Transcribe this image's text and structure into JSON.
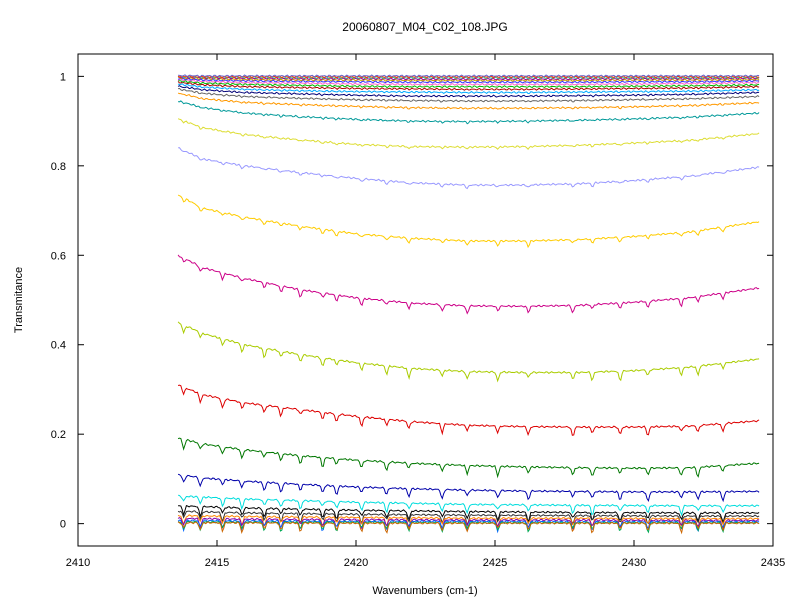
{
  "chart_data": {
    "type": "line",
    "title": "20060807_M04_C02_108.JPG",
    "xlabel": "Wavenumbers (cm-1)",
    "ylabel": "Transmitance",
    "xlim": [
      2410,
      2435
    ],
    "ylim": [
      -0.05,
      1.05
    ],
    "x_ticks": [
      2410,
      2415,
      2420,
      2425,
      2430,
      2435
    ],
    "y_ticks": [
      0,
      0.2,
      0.4,
      0.6,
      0.8,
      1
    ],
    "y_tick_labels": [
      "0",
      "0.2",
      "0.4",
      "0.6",
      "0.8",
      "1"
    ],
    "x_tick_labels": [
      "2410",
      "2415",
      "2420",
      "2425",
      "2430",
      "2435"
    ],
    "grid": false,
    "legend": "none",
    "absorption_lines": [
      2413.8,
      2414.4,
      2415.2,
      2415.9,
      2416.7,
      2417.3,
      2418.0,
      2418.8,
      2419.3,
      2420.2,
      2421.1,
      2421.9,
      2423.1,
      2424.0,
      2425.1,
      2426.2,
      2427.8,
      2428.5,
      2429.5,
      2430.5,
      2431.7,
      2432.3,
      2433.2
    ],
    "series": [
      {
        "color": "#9999ff",
        "x": [
          2413.6,
          2414.5,
          2416,
          2418,
          2420,
          2422,
          2424,
          2426,
          2428,
          2430,
          2432,
          2434.5
        ],
        "y": [
          0.84,
          0.815,
          0.8,
          0.785,
          0.772,
          0.762,
          0.757,
          0.757,
          0.76,
          0.767,
          0.777,
          0.797
        ]
      },
      {
        "color": "#ffcc00",
        "x": [
          2413.6,
          2414.5,
          2416,
          2418,
          2420,
          2422,
          2424,
          2426,
          2428,
          2430,
          2432,
          2434.5
        ],
        "y": [
          0.735,
          0.705,
          0.685,
          0.665,
          0.648,
          0.638,
          0.632,
          0.632,
          0.635,
          0.642,
          0.652,
          0.675
        ]
      },
      {
        "color": "#cc0088",
        "x": [
          2413.6,
          2414.5,
          2416,
          2418,
          2420,
          2422,
          2424,
          2426,
          2428,
          2430,
          2432,
          2434.5
        ],
        "y": [
          0.6,
          0.572,
          0.548,
          0.523,
          0.505,
          0.493,
          0.487,
          0.486,
          0.488,
          0.495,
          0.505,
          0.527
        ]
      },
      {
        "color": "#aacc00",
        "x": [
          2413.6,
          2414.5,
          2416,
          2418,
          2420,
          2422,
          2424,
          2426,
          2428,
          2430,
          2432,
          2434.5
        ],
        "y": [
          0.45,
          0.425,
          0.4,
          0.378,
          0.36,
          0.347,
          0.34,
          0.338,
          0.338,
          0.342,
          0.35,
          0.368
        ]
      },
      {
        "color": "#dd0000",
        "x": [
          2413.6,
          2414.5,
          2416,
          2418,
          2420,
          2422,
          2424,
          2426,
          2428,
          2430,
          2432,
          2434.5
        ],
        "y": [
          0.31,
          0.288,
          0.27,
          0.255,
          0.24,
          0.228,
          0.22,
          0.217,
          0.216,
          0.216,
          0.218,
          0.23
        ]
      },
      {
        "color": "#007700",
        "x": [
          2413.6,
          2414.5,
          2416,
          2418,
          2420,
          2422,
          2424,
          2426,
          2428,
          2430,
          2432,
          2434.5
        ],
        "y": [
          0.192,
          0.178,
          0.165,
          0.152,
          0.142,
          0.135,
          0.13,
          0.127,
          0.125,
          0.124,
          0.125,
          0.135
        ]
      },
      {
        "color": "#0000aa",
        "x": [
          2413.6,
          2414.5,
          2416,
          2418,
          2420,
          2422,
          2424,
          2426,
          2428,
          2430,
          2432,
          2434.5
        ],
        "y": [
          0.11,
          0.102,
          0.095,
          0.088,
          0.082,
          0.078,
          0.075,
          0.073,
          0.072,
          0.071,
          0.071,
          0.072
        ]
      },
      {
        "color": "#00dddd",
        "x": [
          2413.6,
          2416,
          2420,
          2424,
          2428,
          2432,
          2434.5
        ],
        "y": [
          0.062,
          0.055,
          0.048,
          0.043,
          0.041,
          0.04,
          0.04
        ]
      },
      {
        "color": "#000000",
        "x": [
          2413.6,
          2416,
          2420,
          2424,
          2428,
          2432,
          2434.5
        ],
        "y": [
          0.04,
          0.035,
          0.03,
          0.027,
          0.025,
          0.024,
          0.024
        ]
      },
      {
        "color": "#333333",
        "x": [
          2413.6,
          2416,
          2420,
          2424,
          2428,
          2432,
          2434.5
        ],
        "y": [
          0.028,
          0.024,
          0.021,
          0.019,
          0.018,
          0.017,
          0.017
        ]
      },
      {
        "color": "#ff8800",
        "x": [
          2413.6,
          2416,
          2420,
          2424,
          2428,
          2432,
          2434.5
        ],
        "y": [
          0.018,
          0.016,
          0.014,
          0.012,
          0.012,
          0.011,
          0.011
        ]
      },
      {
        "color": "#8800aa",
        "x": [
          2413.6,
          2416,
          2420,
          2424,
          2428,
          2432,
          2434.5
        ],
        "y": [
          0.012,
          0.01,
          0.009,
          0.008,
          0.008,
          0.007,
          0.007
        ]
      },
      {
        "color": "#0066ff",
        "x": [
          2413.6,
          2416,
          2420,
          2424,
          2428,
          2432,
          2434.5
        ],
        "y": [
          0.007,
          0.006,
          0.005,
          0.005,
          0.004,
          0.004,
          0.004
        ]
      },
      {
        "color": "#00aa55",
        "x": [
          2413.6,
          2416,
          2420,
          2424,
          2428,
          2432,
          2434.5
        ],
        "y": [
          0.004,
          0.003,
          0.003,
          0.002,
          0.002,
          0.002,
          0.002
        ]
      },
      {
        "color": "#cc6600",
        "x": [
          2413.6,
          2416,
          2420,
          2424,
          2428,
          2432,
          2434.5
        ],
        "y": [
          0.002,
          0.002,
          0.001,
          0.001,
          0.001,
          0.001,
          0.001
        ]
      },
      {
        "color": "#dddd33",
        "x": [
          2413.6,
          2414.5,
          2416,
          2418,
          2420,
          2422,
          2424,
          2426,
          2428,
          2430,
          2432,
          2434.5
        ],
        "y": [
          0.905,
          0.885,
          0.87,
          0.858,
          0.848,
          0.843,
          0.842,
          0.843,
          0.846,
          0.851,
          0.857,
          0.872
        ]
      },
      {
        "color": "#009999",
        "x": [
          2413.6,
          2414.5,
          2416,
          2418,
          2420,
          2422,
          2424,
          2426,
          2428,
          2430,
          2432,
          2434.5
        ],
        "y": [
          0.945,
          0.93,
          0.918,
          0.91,
          0.904,
          0.9,
          0.899,
          0.9,
          0.902,
          0.905,
          0.909,
          0.918
        ]
      },
      {
        "color": "#ff9900",
        "x": [
          2413.6,
          2414.5,
          2416,
          2418,
          2420,
          2422,
          2424,
          2426,
          2428,
          2430,
          2432,
          2434.5
        ],
        "y": [
          0.963,
          0.95,
          0.942,
          0.937,
          0.933,
          0.93,
          0.929,
          0.929,
          0.93,
          0.932,
          0.935,
          0.941
        ]
      },
      {
        "color": "#666666",
        "x": [
          2413.6,
          2414.5,
          2416,
          2418,
          2420,
          2422,
          2424,
          2426,
          2428,
          2430,
          2432,
          2434.5
        ],
        "y": [
          0.972,
          0.962,
          0.955,
          0.951,
          0.948,
          0.946,
          0.945,
          0.945,
          0.946,
          0.948,
          0.95,
          0.955
        ]
      },
      {
        "color": "#000077",
        "x": [
          2413.6,
          2414.5,
          2416,
          2418,
          2420,
          2422,
          2424,
          2426,
          2428,
          2430,
          2432,
          2434.5
        ],
        "y": [
          0.978,
          0.97,
          0.964,
          0.961,
          0.958,
          0.956,
          0.956,
          0.956,
          0.957,
          0.958,
          0.96,
          0.964
        ]
      },
      {
        "color": "#00aaff",
        "x": [
          2413.6,
          2414.5,
          2416,
          2418,
          2420,
          2422,
          2424,
          2426,
          2428,
          2430,
          2432,
          2434.5
        ],
        "y": [
          0.983,
          0.976,
          0.971,
          0.968,
          0.966,
          0.965,
          0.964,
          0.964,
          0.965,
          0.966,
          0.967,
          0.97
        ]
      },
      {
        "color": "#aa0000",
        "x": [
          2413.6,
          2414.5,
          2416,
          2418,
          2420,
          2422,
          2424,
          2426,
          2428,
          2430,
          2432,
          2434.5
        ],
        "y": [
          0.987,
          0.981,
          0.977,
          0.975,
          0.973,
          0.972,
          0.971,
          0.971,
          0.972,
          0.973,
          0.974,
          0.977
        ]
      },
      {
        "color": "#00bb00",
        "x": [
          2413.6,
          2414.5,
          2416,
          2418,
          2420,
          2422,
          2424,
          2426,
          2428,
          2430,
          2432,
          2434.5
        ],
        "y": [
          0.99,
          0.985,
          0.982,
          0.98,
          0.978,
          0.977,
          0.977,
          0.977,
          0.977,
          0.978,
          0.979,
          0.981
        ]
      },
      {
        "color": "#ff66cc",
        "x": [
          2413.6,
          2414.5,
          2416,
          2418,
          2420,
          2422,
          2424,
          2426,
          2428,
          2430,
          2432,
          2434.5
        ],
        "y": [
          0.993,
          0.989,
          0.986,
          0.985,
          0.983,
          0.982,
          0.982,
          0.982,
          0.982,
          0.983,
          0.984,
          0.986
        ]
      },
      {
        "color": "#3333ff",
        "x": [
          2413.6,
          2414.5,
          2416,
          2418,
          2420,
          2422,
          2424,
          2426,
          2428,
          2430,
          2432,
          2434.5
        ],
        "y": [
          0.995,
          0.992,
          0.99,
          0.989,
          0.988,
          0.987,
          0.987,
          0.987,
          0.987,
          0.988,
          0.988,
          0.99
        ]
      },
      {
        "color": "#cc9900",
        "x": [
          2413.6,
          2414.5,
          2416,
          2418,
          2420,
          2422,
          2424,
          2426,
          2428,
          2430,
          2432,
          2434.5
        ],
        "y": [
          0.997,
          0.995,
          0.993,
          0.992,
          0.992,
          0.991,
          0.991,
          0.991,
          0.991,
          0.992,
          0.992,
          0.993
        ]
      },
      {
        "color": "#990099",
        "x": [
          2413.6,
          2414.5,
          2416,
          2418,
          2420,
          2422,
          2424,
          2426,
          2428,
          2430,
          2432,
          2434.5
        ],
        "y": [
          0.998,
          0.997,
          0.996,
          0.995,
          0.995,
          0.994,
          0.994,
          0.994,
          0.994,
          0.995,
          0.995,
          0.996
        ]
      },
      {
        "color": "#33cc99",
        "x": [
          2413.6,
          2414.5,
          2416,
          2418,
          2420,
          2422,
          2424,
          2426,
          2428,
          2430,
          2432,
          2434.5
        ],
        "y": [
          0.999,
          0.998,
          0.998,
          0.997,
          0.997,
          0.997,
          0.997,
          0.997,
          0.997,
          0.997,
          0.997,
          0.998
        ]
      },
      {
        "color": "#ff3300",
        "x": [
          2413.6,
          2414.5,
          2416,
          2418,
          2420,
          2422,
          2424,
          2426,
          2428,
          2430,
          2432,
          2434.5
        ],
        "y": [
          1.0,
          0.999,
          0.999,
          0.999,
          0.999,
          0.999,
          0.999,
          0.999,
          0.999,
          0.999,
          0.999,
          0.999
        ]
      },
      {
        "color": "#6666cc",
        "x": [
          2413.6,
          2414.5,
          2416,
          2418,
          2420,
          2422,
          2424,
          2426,
          2428,
          2430,
          2432,
          2434.5
        ],
        "y": [
          1.002,
          1.001,
          1.001,
          1.001,
          1.001,
          1.001,
          1.001,
          1.001,
          1.001,
          1.001,
          1.001,
          1.001
        ]
      }
    ]
  }
}
